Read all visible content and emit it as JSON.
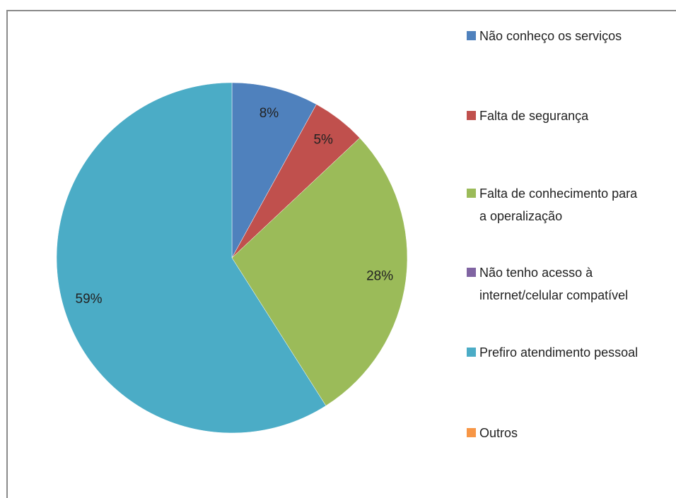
{
  "chart_data": {
    "type": "pie",
    "categories": [
      "Não conheço os serviços",
      "Falta de segurança",
      "Falta de conhecimento para a operalização",
      "Não tenho acesso à internet/celular compatível",
      "Prefiro atendimento pessoal",
      "Outros"
    ],
    "values": [
      8,
      5,
      28,
      0,
      59,
      0
    ],
    "value_labels": [
      "8%",
      "5%",
      "28%",
      null,
      "59%",
      null
    ],
    "colors": [
      "#4f81bd",
      "#c0504d",
      "#9bbb59",
      "#8064a2",
      "#4bacc6",
      "#f79646"
    ],
    "legend": "right"
  }
}
